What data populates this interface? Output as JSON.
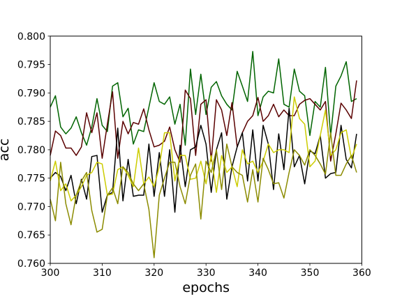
{
  "chart_data": {
    "type": "line",
    "xlabel": "epochs",
    "ylabel": "acc",
    "xlim": [
      300,
      360
    ],
    "ylim": [
      0.76,
      0.8
    ],
    "xticks": [
      300,
      310,
      320,
      330,
      340,
      350,
      360
    ],
    "xtick_labels": [
      "300",
      "310",
      "320",
      "330",
      "340",
      "350",
      "360"
    ],
    "yticks": [
      0.76,
      0.765,
      0.77,
      0.775,
      0.78,
      0.785,
      0.79,
      0.795,
      0.8
    ],
    "ytick_labels": [
      "0.760",
      "0.765",
      "0.770",
      "0.775",
      "0.780",
      "0.785",
      "0.790",
      "0.795",
      "0.800"
    ],
    "grid": false,
    "legend": "none",
    "x": [
      300,
      301,
      302,
      303,
      304,
      305,
      306,
      307,
      308,
      309,
      310,
      311,
      312,
      313,
      314,
      315,
      316,
      317,
      318,
      319,
      320,
      321,
      322,
      323,
      324,
      325,
      326,
      327,
      328,
      329,
      330,
      331,
      332,
      333,
      334,
      335,
      336,
      337,
      338,
      339,
      340,
      341,
      342,
      343,
      344,
      345,
      346,
      347,
      348,
      349,
      350,
      351,
      352,
      353,
      354,
      355,
      356,
      357,
      358,
      359
    ],
    "series": [
      {
        "color": "#006400",
        "values": [
          0.7875,
          0.7895,
          0.784,
          0.7828,
          0.7838,
          0.7858,
          0.783,
          0.7808,
          0.784,
          0.789,
          0.7843,
          0.7832,
          0.7912,
          0.7918,
          0.7858,
          0.7873,
          0.781,
          0.7835,
          0.7832,
          0.7875,
          0.7918,
          0.7885,
          0.788,
          0.7893,
          0.7845,
          0.788,
          0.7808,
          0.7942,
          0.7862,
          0.7933,
          0.7862,
          0.791,
          0.792,
          0.7895,
          0.788,
          0.787,
          0.7938,
          0.7912,
          0.7885,
          0.7973,
          0.786,
          0.7893,
          0.7903,
          0.79,
          0.796,
          0.788,
          0.7875,
          0.7942,
          0.7903,
          0.7895,
          0.7825,
          0.7885,
          0.7875,
          0.7945,
          0.7825,
          0.7912,
          0.793,
          0.7955,
          0.7885,
          0.789
        ]
      },
      {
        "color": "#5a0000",
        "values": [
          0.779,
          0.7833,
          0.7825,
          0.7803,
          0.7803,
          0.779,
          0.7805,
          0.7865,
          0.783,
          0.7865,
          0.7785,
          0.7845,
          0.7902,
          0.7785,
          0.785,
          0.7828,
          0.7848,
          0.7845,
          0.7872,
          0.7835,
          0.7805,
          0.7808,
          0.7815,
          0.784,
          0.78,
          0.7778,
          0.7905,
          0.789,
          0.779,
          0.788,
          0.7888,
          0.778,
          0.7888,
          0.787,
          0.7825,
          0.7883,
          0.7805,
          0.783,
          0.785,
          0.786,
          0.7892,
          0.785,
          0.786,
          0.788,
          0.7858,
          0.787,
          0.786,
          0.786,
          0.788,
          0.7887,
          0.789,
          0.788,
          0.787,
          0.7885,
          0.778,
          0.7828,
          0.7882,
          0.787,
          0.7855,
          0.7922
        ]
      },
      {
        "color": "#000000",
        "values": [
          0.775,
          0.776,
          0.7753,
          0.7728,
          0.7755,
          0.7705,
          0.7748,
          0.7713,
          0.7788,
          0.779,
          0.769,
          0.772,
          0.7725,
          0.7838,
          0.771,
          0.7783,
          0.7718,
          0.772,
          0.772,
          0.781,
          0.7718,
          0.7795,
          0.7718,
          0.78,
          0.769,
          0.7808,
          0.7735,
          0.78,
          0.7805,
          0.7843,
          0.781,
          0.7725,
          0.78,
          0.783,
          0.7713,
          0.777,
          0.7805,
          0.783,
          0.7745,
          0.7835,
          0.7745,
          0.7843,
          0.781,
          0.773,
          0.7828,
          0.7765,
          0.7873,
          0.777,
          0.779,
          0.774,
          0.7798,
          0.7793,
          0.7825,
          0.775,
          0.7758,
          0.776,
          0.7843,
          0.7783,
          0.7768,
          0.7828
        ]
      },
      {
        "color": "#cccc00",
        "values": [
          0.7745,
          0.778,
          0.7728,
          0.774,
          0.771,
          0.772,
          0.7735,
          0.7755,
          0.776,
          0.7778,
          0.7775,
          0.772,
          0.7722,
          0.7765,
          0.777,
          0.7755,
          0.7735,
          0.7803,
          0.774,
          0.7752,
          0.7735,
          0.777,
          0.783,
          0.783,
          0.7745,
          0.779,
          0.779,
          0.7748,
          0.775,
          0.778,
          0.774,
          0.779,
          0.7725,
          0.779,
          0.776,
          0.777,
          0.7735,
          0.78,
          0.7775,
          0.778,
          0.776,
          0.778,
          0.781,
          0.7795,
          0.78,
          0.78,
          0.7795,
          0.7893,
          0.7855,
          0.7845,
          0.777,
          0.778,
          0.7825,
          0.787,
          0.779,
          0.78,
          0.783,
          0.7835,
          0.7785,
          0.781
        ]
      },
      {
        "color": "#8b8b00",
        "values": [
          0.7713,
          0.7675,
          0.7778,
          0.7705,
          0.7668,
          0.772,
          0.7745,
          0.776,
          0.7693,
          0.7655,
          0.766,
          0.772,
          0.7733,
          0.7705,
          0.777,
          0.776,
          0.774,
          0.7728,
          0.774,
          0.7695,
          0.761,
          0.772,
          0.775,
          0.7778,
          0.7778,
          0.7735,
          0.7705,
          0.7755,
          0.7775,
          0.7678,
          0.778,
          0.776,
          0.78,
          0.773,
          0.781,
          0.777,
          0.776,
          0.7755,
          0.7708,
          0.7765,
          0.7708,
          0.7785,
          0.7765,
          0.774,
          0.7742,
          0.7715,
          0.776,
          0.78,
          0.779,
          0.7773,
          0.78,
          0.779,
          0.7775,
          0.7757,
          0.783,
          0.7755,
          0.7755,
          0.7775,
          0.779,
          0.776
        ]
      }
    ]
  }
}
